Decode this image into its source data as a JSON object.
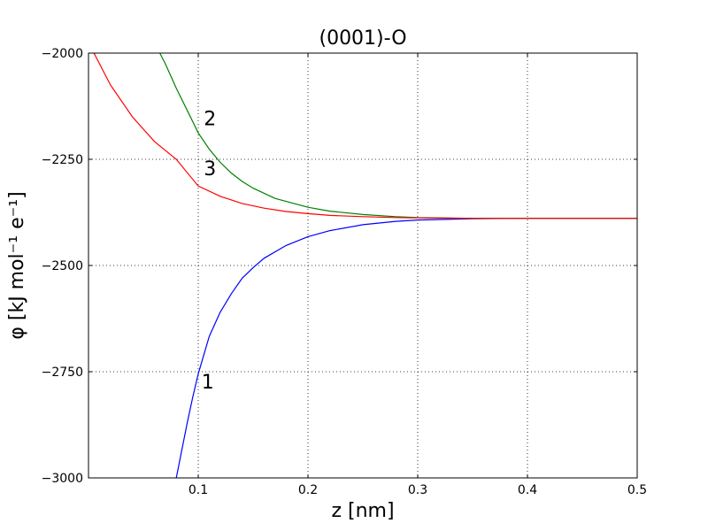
{
  "chart_data": {
    "type": "line",
    "title": "(0001)-O",
    "xlabel": "z [nm]",
    "ylabel": "φ [kJ mol⁻¹ e⁻¹]",
    "xlim": [
      0.0,
      0.5
    ],
    "ylim": [
      -3000,
      -2000
    ],
    "x_ticks": [
      0.1,
      0.2,
      0.3,
      0.4,
      0.5
    ],
    "x_tick_labels": [
      "0.1",
      "0.2",
      "0.3",
      "0.4",
      "0.5"
    ],
    "y_ticks": [
      -2000,
      -2250,
      -2500,
      -2750,
      -3000
    ],
    "y_tick_labels": [
      "−2000",
      "−2250",
      "−2500",
      "−2750",
      "−3000"
    ],
    "grid": true,
    "legend": "none",
    "series": [
      {
        "color": "#0000ff",
        "x": [
          0.08,
          0.085,
          0.09,
          0.095,
          0.1,
          0.11,
          0.12,
          0.13,
          0.14,
          0.15,
          0.16,
          0.18,
          0.2,
          0.22,
          0.25,
          0.28,
          0.3,
          0.35,
          0.4,
          0.45,
          0.5
        ],
        "y": [
          -3000,
          -2935,
          -2870,
          -2810,
          -2755,
          -2667,
          -2610,
          -2567,
          -2530,
          -2505,
          -2483,
          -2453,
          -2432,
          -2418,
          -2404,
          -2396,
          -2393,
          -2390,
          -2389,
          -2389,
          -2389
        ]
      },
      {
        "color": "#008000",
        "x": [
          0.065,
          0.07,
          0.08,
          0.09,
          0.1,
          0.11,
          0.12,
          0.13,
          0.14,
          0.15,
          0.17,
          0.2,
          0.22,
          0.25,
          0.28,
          0.3,
          0.35,
          0.4,
          0.45,
          0.5
        ],
        "y": [
          -2000,
          -2025,
          -2083,
          -2135,
          -2188,
          -2226,
          -2257,
          -2282,
          -2302,
          -2318,
          -2342,
          -2363,
          -2372,
          -2380,
          -2385,
          -2387,
          -2389,
          -2389,
          -2389,
          -2389
        ]
      },
      {
        "color": "#ff0000",
        "x": [
          0.005,
          0.02,
          0.04,
          0.06,
          0.08,
          0.1,
          0.12,
          0.14,
          0.16,
          0.18,
          0.2,
          0.22,
          0.25,
          0.28,
          0.3,
          0.35,
          0.4,
          0.45,
          0.5
        ],
        "y": [
          -2000,
          -2075,
          -2150,
          -2208,
          -2250,
          -2313,
          -2337,
          -2354,
          -2365,
          -2373,
          -2378,
          -2382,
          -2385,
          -2387,
          -2388,
          -2389,
          -2389,
          -2389,
          -2389
        ]
      }
    ],
    "annotations": [
      {
        "text": "1",
        "x": 0.103,
        "y": -2790
      },
      {
        "text": "2",
        "x": 0.105,
        "y": -2170
      },
      {
        "text": "3",
        "x": 0.105,
        "y": -2288
      }
    ]
  }
}
